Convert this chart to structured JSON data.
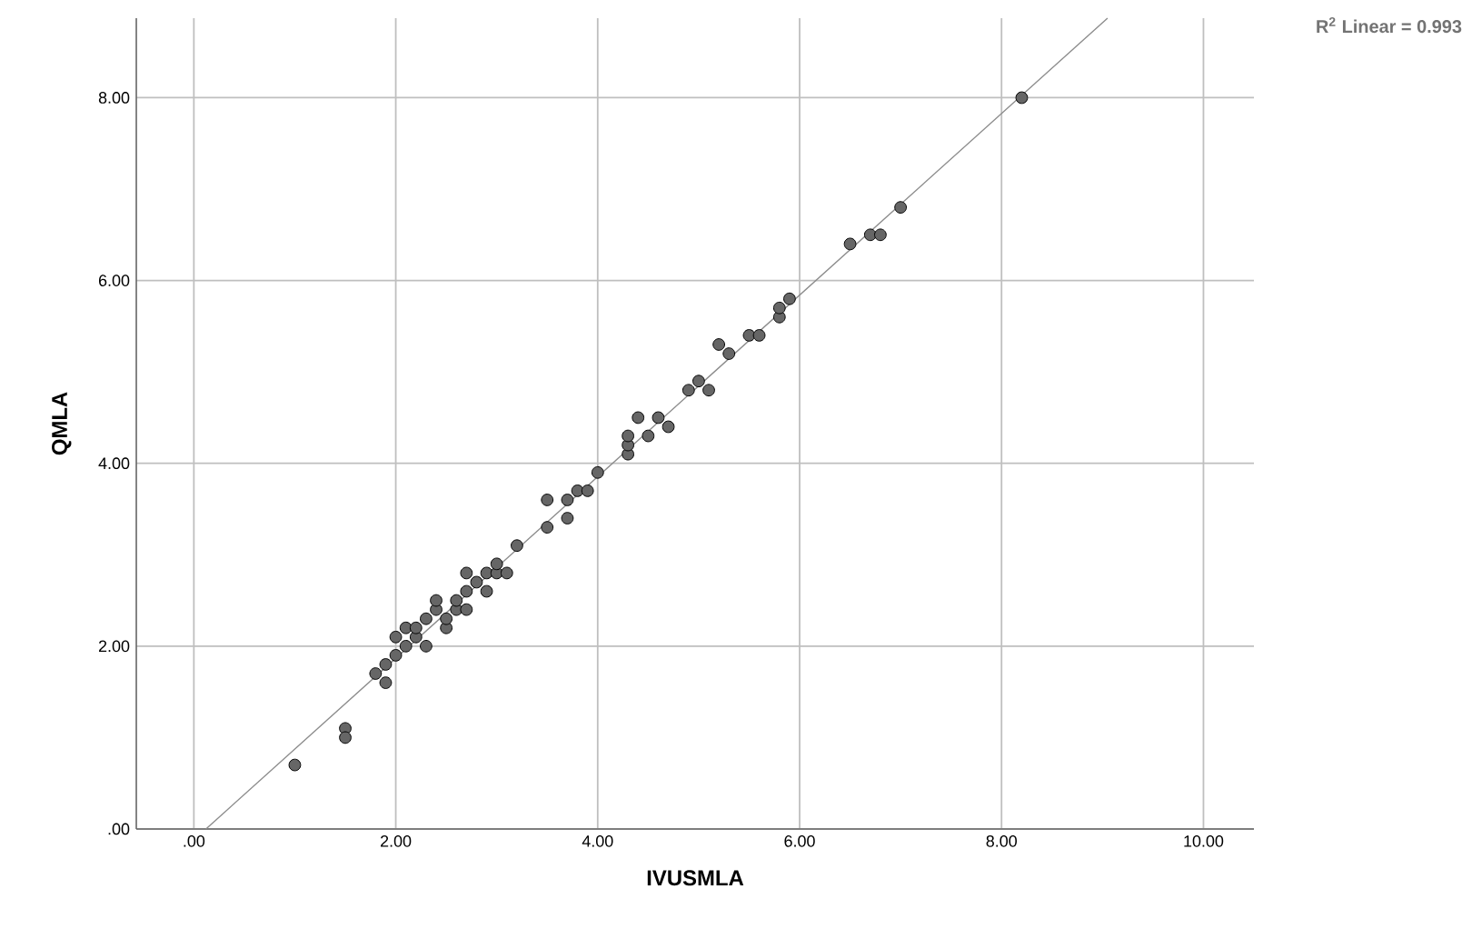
{
  "chart_data": {
    "type": "scatter",
    "xlabel": "IVUSMLA",
    "ylabel": "QMLA",
    "xlim": [
      -0.57,
      10.5
    ],
    "ylim": [
      0,
      8.87
    ],
    "xticks": [
      {
        "value": 0,
        "label": ".00"
      },
      {
        "value": 2,
        "label": "2.00"
      },
      {
        "value": 4,
        "label": "4.00"
      },
      {
        "value": 6,
        "label": "6.00"
      },
      {
        "value": 8,
        "label": "8.00"
      },
      {
        "value": 10,
        "label": "10.00"
      }
    ],
    "yticks": [
      {
        "value": 0,
        "label": ".00"
      },
      {
        "value": 2,
        "label": "2.00"
      },
      {
        "value": 4,
        "label": "4.00"
      },
      {
        "value": 6,
        "label": "6.00"
      },
      {
        "value": 8,
        "label": "8.00"
      }
    ],
    "grid": true,
    "annotations": [
      "R$^{2}$ Linear = 0.993"
    ],
    "series": [
      {
        "marker": "circle",
        "color": "#666666",
        "x": [
          1.0,
          1.5,
          1.5,
          1.8,
          1.9,
          1.9,
          2.0,
          2.0,
          2.1,
          2.1,
          2.2,
          2.2,
          2.3,
          2.3,
          2.4,
          2.4,
          2.5,
          2.5,
          2.6,
          2.6,
          2.7,
          2.7,
          2.7,
          2.8,
          2.9,
          2.9,
          3.0,
          3.0,
          3.1,
          3.2,
          3.5,
          3.5,
          3.7,
          3.7,
          3.8,
          3.9,
          4.0,
          4.3,
          4.3,
          4.3,
          4.4,
          4.5,
          4.6,
          4.7,
          4.9,
          5.0,
          5.1,
          5.2,
          5.3,
          5.5,
          5.6,
          5.8,
          5.8,
          5.9,
          6.5,
          6.7,
          6.8,
          7.0,
          8.2
        ],
        "values": [
          0.7,
          1.1,
          1.0,
          1.7,
          1.8,
          1.6,
          1.9,
          2.1,
          2.0,
          2.2,
          2.1,
          2.2,
          2.0,
          2.3,
          2.4,
          2.5,
          2.2,
          2.3,
          2.4,
          2.5,
          2.4,
          2.6,
          2.8,
          2.7,
          2.6,
          2.8,
          2.8,
          2.9,
          2.8,
          3.1,
          3.3,
          3.6,
          3.4,
          3.6,
          3.7,
          3.7,
          3.9,
          4.1,
          4.2,
          4.3,
          4.5,
          4.3,
          4.5,
          4.4,
          4.8,
          4.9,
          4.8,
          5.3,
          5.2,
          5.4,
          5.4,
          5.6,
          5.7,
          5.8,
          6.4,
          6.5,
          6.5,
          6.8,
          8.0
        ]
      },
      {
        "type": "line",
        "marker": "none",
        "color": "#8c8c8c",
        "x": [
          0.12,
          9.05
        ],
        "values": [
          0,
          8.87
        ]
      }
    ]
  }
}
